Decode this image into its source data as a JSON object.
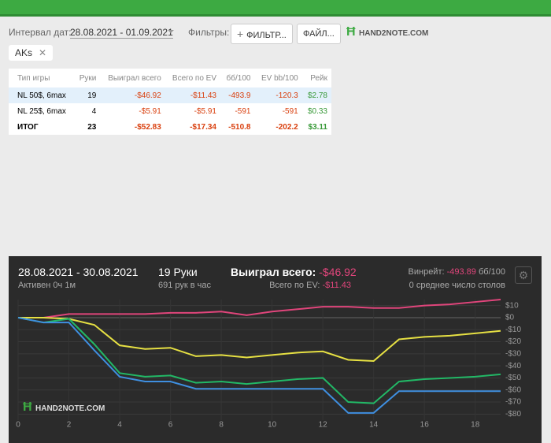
{
  "filters": {
    "date_label": "Интервал дат:",
    "date_range": "28.08.2021 - 01.09.2021",
    "filters_label": "Фильтры:",
    "filter_button": "ФИЛЬТР...",
    "file_button": "ФАЙЛ...",
    "logo": "HAND2NOTE.COM",
    "chip": "AKs"
  },
  "table": {
    "headers": [
      "Тип игры",
      "Руки",
      "Выиграл всего",
      "Всего по EV",
      "бб/100",
      "EV bb/100",
      "Рейк"
    ],
    "rows": [
      [
        "NL 50$, 6max",
        "19",
        "-$46.92",
        "-$11.43",
        "-493.9",
        "-120.3",
        "$2.78"
      ],
      [
        "NL 25$, 6max",
        "4",
        "-$5.91",
        "-$5.91",
        "-591",
        "-591",
        "$0.33"
      ]
    ],
    "total": [
      "ИТОГ",
      "23",
      "-$52.83",
      "-$17.34",
      "-510.8",
      "-202.2",
      "$3.11"
    ]
  },
  "summary": {
    "period": "28.08.2021 - 30.08.2021",
    "active": "Активен 0ч 1м",
    "hands": "19 Руки",
    "hands_rate": "691 рук в час",
    "won_label": "Выиграл всего:",
    "won_value": "-$46.92",
    "ev_label": "Всего по EV:",
    "ev_value": "-$11.43",
    "winrate_label": "Винрейт:",
    "winrate_value": "-493.89",
    "winrate_unit": "бб/100",
    "tables": "0 среднее число столов",
    "logo": "HAND2NOTE.COM"
  },
  "chart_data": {
    "type": "line",
    "x": [
      0,
      1,
      2,
      3,
      4,
      5,
      6,
      7,
      8,
      9,
      10,
      11,
      12,
      13,
      14,
      15,
      16,
      17,
      18,
      19
    ],
    "series": [
      {
        "color": "#e0457b",
        "values": [
          0,
          0,
          3,
          3,
          3,
          3,
          4,
          4,
          5,
          2,
          5,
          7,
          9,
          9,
          8,
          8,
          10,
          11,
          13,
          15
        ]
      },
      {
        "color": "#e6e043",
        "values": [
          0,
          0,
          -1,
          -6,
          -23,
          -26,
          -25,
          -32,
          -31,
          -33,
          -31,
          -29,
          -28,
          -35,
          -36,
          -18,
          -16,
          -15,
          -13,
          -11
        ]
      },
      {
        "color": "#22b866",
        "values": [
          0,
          -4,
          -1,
          -22,
          -46,
          -49,
          -48,
          -54,
          -53,
          -55,
          -53,
          -51,
          -50,
          -70,
          -71,
          -53,
          -51,
          -50,
          -49,
          -47
        ]
      },
      {
        "color": "#3f8fe0",
        "values": [
          0,
          -4,
          -4,
          -27,
          -49,
          -53,
          -53,
          -59,
          -59,
          -59,
          -59,
          -59,
          -59,
          -79,
          -79,
          -61,
          -61,
          -61,
          -61,
          -61
        ]
      }
    ],
    "xlim": [
      0,
      19
    ],
    "xticks": [
      0,
      2,
      4,
      6,
      8,
      10,
      12,
      14,
      16,
      18
    ],
    "ylim": [
      -85,
      15
    ],
    "yticks": [
      {
        "value": 10,
        "label": "$10"
      },
      {
        "value": 0,
        "label": "$0"
      },
      {
        "value": -10,
        "label": "-$10"
      },
      {
        "value": -20,
        "label": "-$20"
      },
      {
        "value": -30,
        "label": "-$30"
      },
      {
        "value": -40,
        "label": "-$40"
      },
      {
        "value": -50,
        "label": "-$50"
      },
      {
        "value": -60,
        "label": "-$60"
      },
      {
        "value": -70,
        "label": "-$70"
      },
      {
        "value": -80,
        "label": "-$80"
      }
    ],
    "grid": true
  }
}
